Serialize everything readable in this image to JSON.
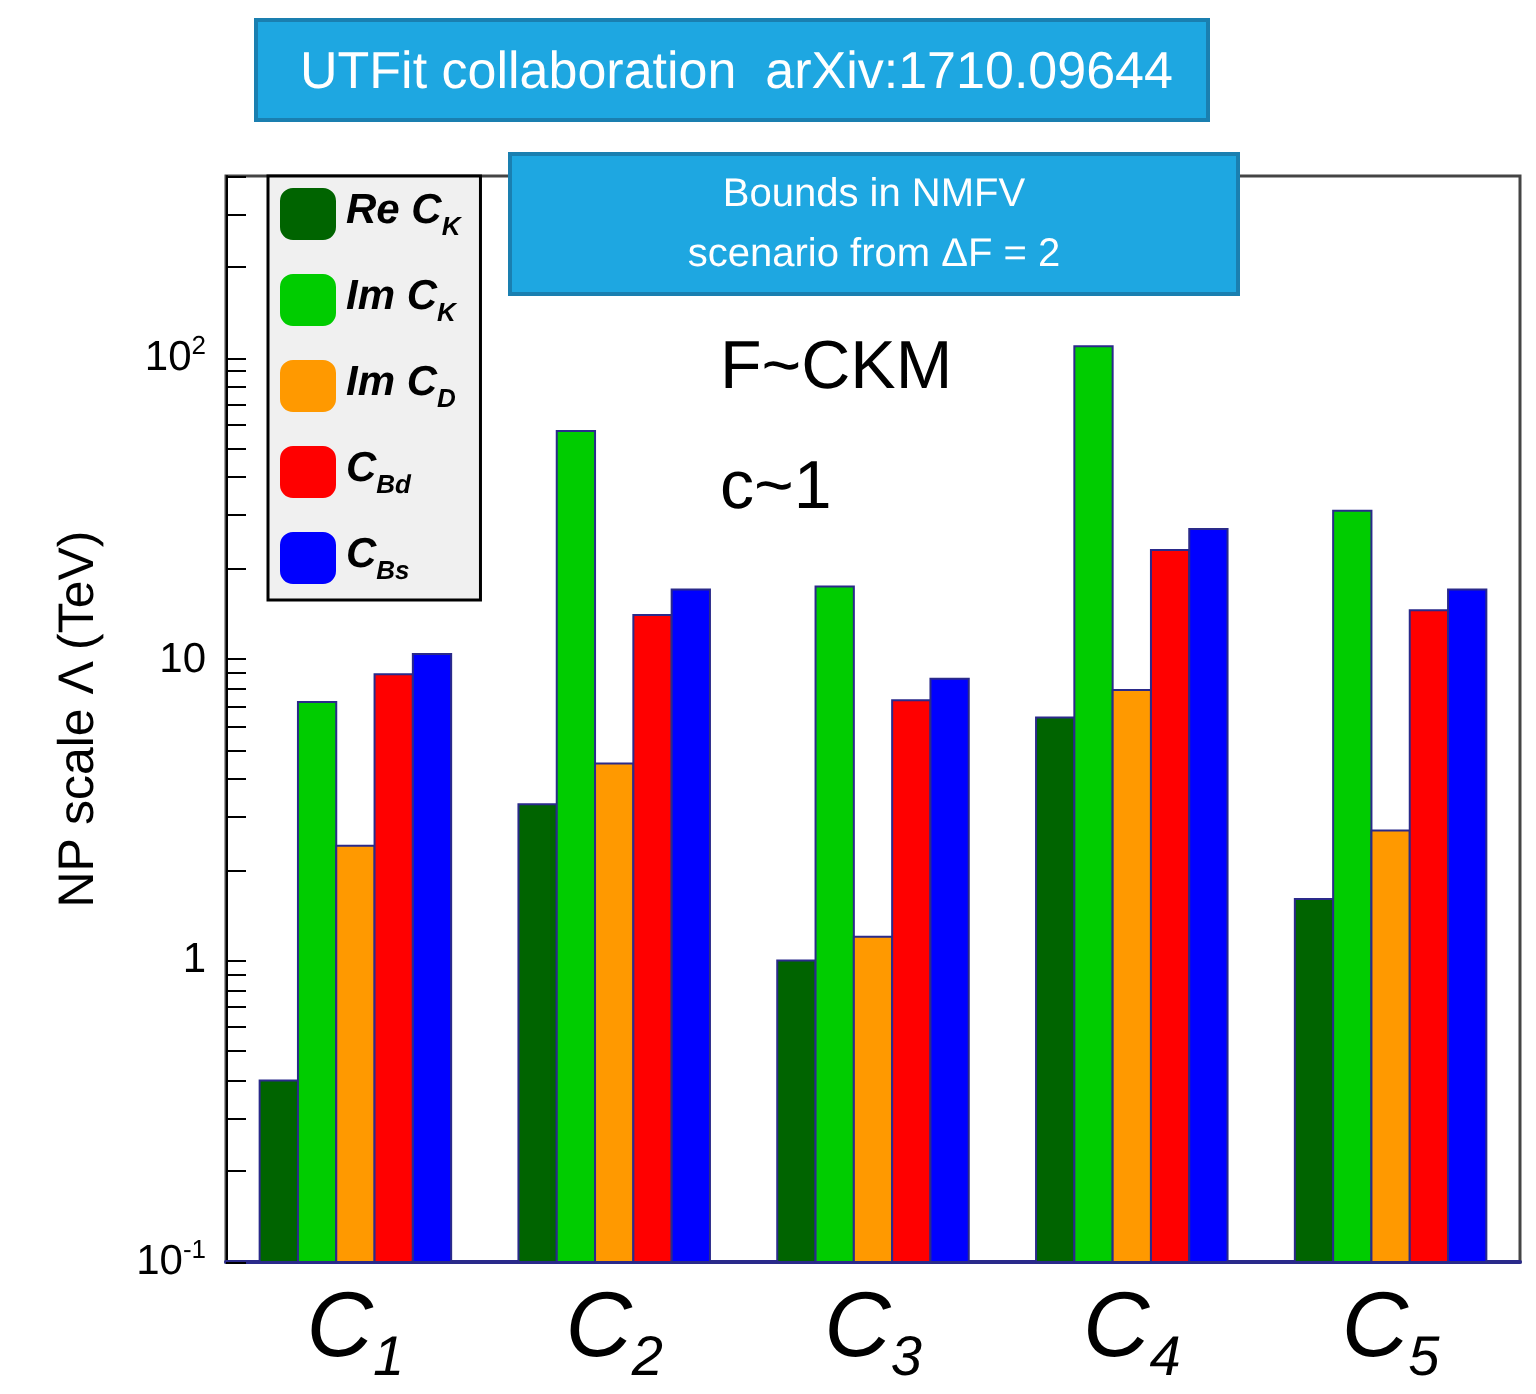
{
  "chart_data": {
    "type": "bar",
    "title": "UTFit collaboration  arXiv:1710.09644",
    "subtitle": "Bounds in NMFV\nscenario from ΔF = 2",
    "ylabel": "NP scale Λ (TeV)",
    "annotations": [
      "F~CKM",
      "c~1"
    ],
    "categories": [
      "C$_{1}$",
      "C$_{2}$",
      "C$_{3}$",
      "C$_{4}$",
      "C$_{5}$"
    ],
    "series": [
      {
        "name": "Re C$_{K}$",
        "color": "#006400",
        "values": [
          0.4,
          3.3,
          1.0,
          6.4,
          1.6
        ]
      },
      {
        "name": "Im C$_{K}$",
        "color": "#00cc00",
        "values": [
          7.2,
          57,
          17.4,
          109,
          31
        ]
      },
      {
        "name": "Im C$_{D}$",
        "color": "#ff9900",
        "values": [
          2.4,
          4.5,
          1.2,
          7.9,
          2.7
        ]
      },
      {
        "name": "C$_{Bd}$",
        "color": "#ff0000",
        "values": [
          8.9,
          14,
          7.3,
          23,
          14.5
        ]
      },
      {
        "name": "C$_{Bs}$",
        "color": "#0000ff",
        "values": [
          10.4,
          17,
          8.6,
          27,
          17
        ]
      }
    ],
    "log": "y",
    "ylim": [
      0.1,
      400
    ],
    "yticks": [
      {
        "value": 0.1,
        "label": "10$^{-1}$"
      },
      {
        "value": 0.2,
        "label": null
      },
      {
        "value": 0.3,
        "label": null
      },
      {
        "value": 0.4,
        "label": null
      },
      {
        "value": 0.5,
        "label": null
      },
      {
        "value": 0.6,
        "label": null
      },
      {
        "value": 0.7,
        "label": null
      },
      {
        "value": 0.8,
        "label": null
      },
      {
        "value": 0.9,
        "label": null
      },
      {
        "value": 1,
        "label": "1"
      },
      {
        "value": 2,
        "label": null
      },
      {
        "value": 3,
        "label": null
      },
      {
        "value": 4,
        "label": null
      },
      {
        "value": 5,
        "label": null
      },
      {
        "value": 6,
        "label": null
      },
      {
        "value": 7,
        "label": null
      },
      {
        "value": 8,
        "label": null
      },
      {
        "value": 9,
        "label": null
      },
      {
        "value": 10,
        "label": "10"
      },
      {
        "value": 20,
        "label": null
      },
      {
        "value": 30,
        "label": null
      },
      {
        "value": 40,
        "label": null
      },
      {
        "value": 50,
        "label": null
      },
      {
        "value": 60,
        "label": null
      },
      {
        "value": 70,
        "label": null
      },
      {
        "value": 80,
        "label": null
      },
      {
        "value": 90,
        "label": null
      },
      {
        "value": 100,
        "label": "10$^{2}$"
      },
      {
        "value": 200,
        "label": null
      },
      {
        "value": 300,
        "label": null
      },
      {
        "value": 400,
        "label": null
      }
    ],
    "grid": false,
    "legend": "top left"
  }
}
